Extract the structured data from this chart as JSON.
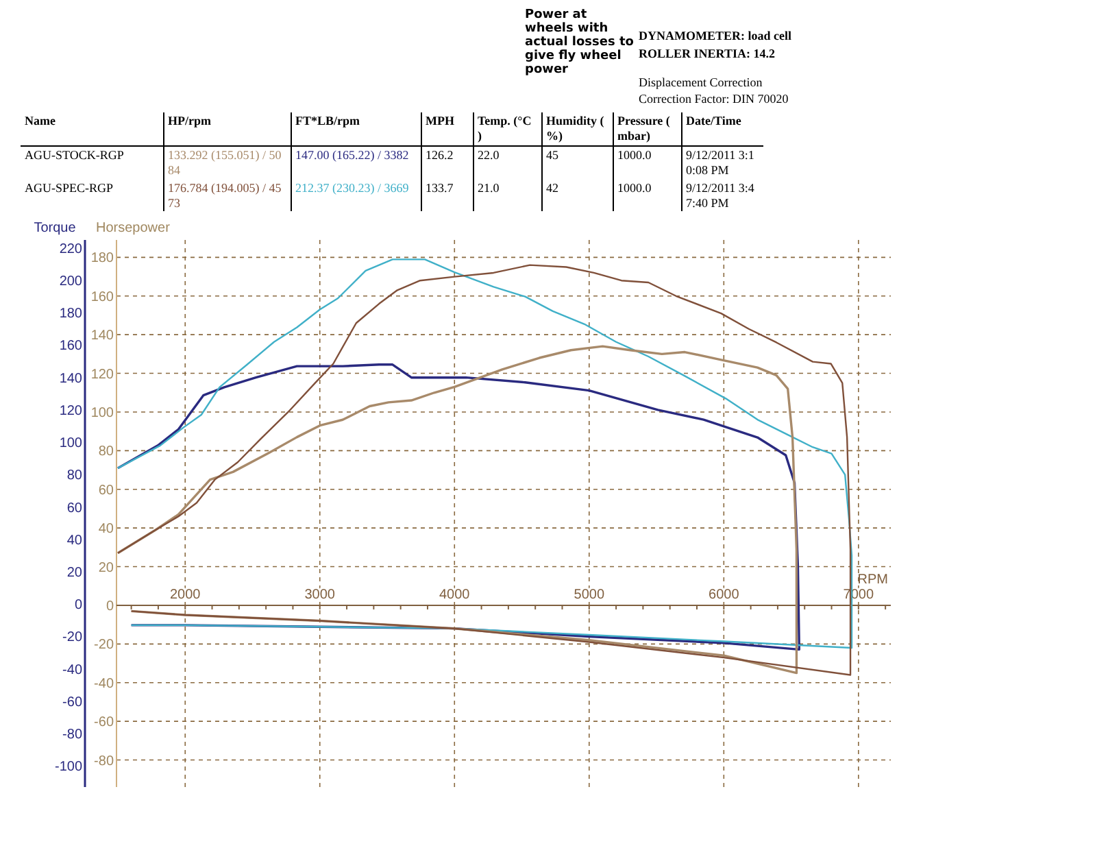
{
  "chart_data": {
    "type": "line",
    "xlabel": "RPM",
    "ylabel": "Torque",
    "y2label": "Horsepower",
    "annotations": [
      "Power at wheels with actual losses to give fly wheel power",
      "DYNAMOMETER: load cell",
      "ROLLER INERTIA: 14.2",
      "Displacement Correction",
      "Correction Factor: DIN 70020",
      "Name",
      "HP/rpm",
      "FT*LB/rpm",
      "MPH",
      "Temp. (°C )",
      "Humidity ( %)",
      "Pressure ( mbar)",
      "Date/Time",
      "AGU-STOCK-RGP",
      "133.292 (155.051) / 5084",
      "147.00 (165.22) / 3382",
      "126.2",
      "22.0",
      "45",
      "1000.0",
      "9/12/2011 3:10:08 PM",
      "AGU-SPEC-RGP",
      "176.784 (194.005) / 4573",
      "212.37 (230.23) / 3669",
      "133.7",
      "21.0",
      "42",
      "1000.0",
      "9/12/2011 3:47:40 PM"
    ],
    "xlim": [
      1490,
      7240
    ],
    "xticks": [
      {
        "value": 1600,
        "label": null
      },
      {
        "value": 1800,
        "label": null
      },
      2000,
      {
        "value": 2200,
        "label": null
      },
      {
        "value": 2400,
        "label": null
      },
      {
        "value": 2600,
        "label": null
      },
      {
        "value": 2800,
        "label": null
      },
      3000,
      {
        "value": 3200,
        "label": null
      },
      {
        "value": 3400,
        "label": null
      },
      {
        "value": 3600,
        "label": null
      },
      {
        "value": 3800,
        "label": null
      },
      4000,
      {
        "value": 4200,
        "label": null
      },
      {
        "value": 4400,
        "label": null
      },
      {
        "value": 4600,
        "label": null
      },
      {
        "value": 4800,
        "label": null
      },
      5000,
      {
        "value": 5200,
        "label": null
      },
      {
        "value": 5400,
        "label": null
      },
      {
        "value": 5600,
        "label": null
      },
      {
        "value": 5800,
        "label": null
      },
      6000,
      {
        "value": 6200,
        "label": null
      },
      {
        "value": 6400,
        "label": null
      },
      {
        "value": 6600,
        "label": null
      },
      {
        "value": 6800,
        "label": null
      },
      7000,
      {
        "value": 7200,
        "label": null
      }
    ],
    "ylim": [
      -113,
      225
    ],
    "yticks": [
      -100,
      -80,
      -60,
      -40,
      -20,
      0,
      20,
      40,
      60,
      80,
      100,
      120,
      140,
      160,
      180,
      200,
      220
    ],
    "y2lim": [
      -94,
      189
    ],
    "y2ticks": [
      -80,
      -60,
      -40,
      -20,
      0,
      20,
      40,
      60,
      80,
      100,
      120,
      140,
      160,
      180
    ],
    "grid": true,
    "series": [
      {
        "color": "#2a2a80",
        "x": [
          1500,
          1797,
          1950,
          2135,
          2290,
          2525,
          2830,
          3170,
          3440,
          3540,
          3680,
          3980,
          4085,
          4525,
          5000,
          5510,
          5850,
          6250,
          6460,
          6525,
          6550,
          6560,
          6000,
          5000,
          4000,
          3000,
          2000,
          1600
        ],
        "values": [
          84,
          98,
          108,
          129,
          134,
          140,
          147,
          147,
          148,
          148,
          140,
          140,
          140,
          137,
          132,
          120,
          114,
          103,
          92,
          75,
          24,
          -28,
          -24,
          -20,
          -15,
          -14,
          -13,
          -13
        ]
      },
      {
        "color": "#40b0c8",
        "x": [
          1500,
          1815,
          1985,
          2120,
          2255,
          2460,
          2660,
          2830,
          3000,
          3135,
          3340,
          3540,
          3680,
          3780,
          4000,
          4290,
          4525,
          4730,
          4965,
          5200,
          5440,
          5710,
          6015,
          6250,
          6490,
          6660,
          6800,
          6900,
          6930,
          6950,
          6950,
          6000,
          5000,
          4000,
          3000,
          2000,
          1600
        ],
        "values": [
          84,
          98,
          109,
          117,
          134,
          148,
          162,
          171,
          182,
          189,
          206,
          213,
          213,
          213,
          205,
          196,
          190,
          181,
          173,
          162,
          153,
          141,
          127,
          114,
          104,
          97,
          93,
          80,
          52,
          30,
          -27,
          -23,
          -19,
          -15,
          -14,
          -13,
          -13
        ]
      },
      {
        "color": "#a88a6a",
        "axis": "y2",
        "x": [
          1500,
          1780,
          1950,
          2185,
          2355,
          2625,
          2830,
          3000,
          3170,
          3370,
          3510,
          3680,
          3850,
          4000,
          4355,
          4630,
          4865,
          5100,
          5305,
          5540,
          5710,
          5980,
          6250,
          6390,
          6475,
          6510,
          6540,
          6540,
          6000,
          5000,
          4000,
          3000,
          2000,
          1600
        ],
        "values": [
          27,
          39,
          47,
          65,
          69,
          79,
          87,
          93,
          96,
          103,
          105,
          106,
          110,
          113,
          122,
          128,
          132,
          134,
          132,
          130,
          131,
          127,
          123,
          119,
          112,
          87,
          29,
          -35,
          -26,
          -18,
          -12,
          -8,
          -5,
          -3
        ]
      },
      {
        "color": "#80503a",
        "axis": "y2",
        "x": [
          1500,
          1780,
          1950,
          2085,
          2220,
          2390,
          2560,
          2765,
          2965,
          3100,
          3270,
          3440,
          3575,
          3745,
          4000,
          4290,
          4560,
          4830,
          5035,
          5240,
          5440,
          5645,
          5980,
          6185,
          6390,
          6660,
          6795,
          6880,
          6915,
          6940,
          6940,
          6000,
          5000,
          4000,
          3000,
          2000,
          1600
        ],
        "values": [
          27,
          39,
          46,
          53,
          65,
          74,
          86,
          100,
          115,
          125,
          146,
          156,
          163,
          168,
          170,
          172,
          176,
          175,
          172,
          168,
          167,
          160,
          151,
          143,
          136,
          126,
          125,
          115,
          87,
          29,
          -36,
          -27,
          -19,
          -12,
          -8,
          -5,
          -3
        ]
      }
    ]
  }
}
